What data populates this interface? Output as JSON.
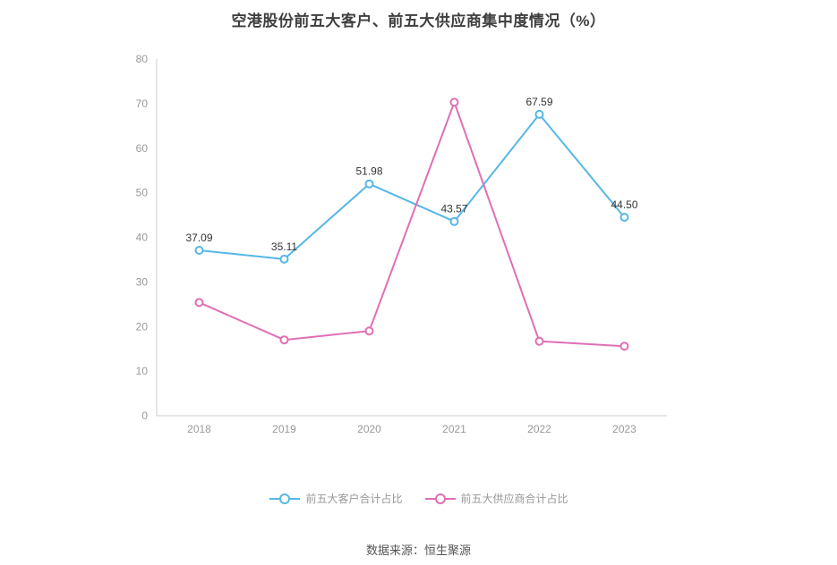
{
  "page": {
    "title": "空港股份前五大客户、前五大供应商集中度情况（%）",
    "source": "数据来源：恒生聚源"
  },
  "chart_data": {
    "type": "line",
    "title": "空港股份前五大客户、前五大供应商集中度情况（%）",
    "categories": [
      "2018",
      "2019",
      "2020",
      "2021",
      "2022",
      "2023"
    ],
    "series": [
      {
        "name": "前五大客户合计占比",
        "color": "#56b7e6",
        "values": [
          37.09,
          35.11,
          51.98,
          43.57,
          67.59,
          44.5
        ],
        "labels": [
          "37.09",
          "35.11",
          "51.98",
          "43.57",
          "67.59",
          "44.50"
        ]
      },
      {
        "name": "前五大供应商合计占比",
        "color": "#df6fb5",
        "values": [
          25.4,
          17.0,
          19.0,
          70.3,
          16.7,
          15.6
        ],
        "labels": []
      }
    ],
    "xlabel": "",
    "ylabel": "",
    "ylim": [
      0,
      80
    ],
    "yticks": [
      0,
      10,
      20,
      30,
      40,
      50,
      60,
      70,
      80
    ],
    "grid": false,
    "legend_position": "bottom",
    "axis_color": "#cccccc",
    "tick_label_color": "#999999",
    "point_label_color": "#333333"
  }
}
